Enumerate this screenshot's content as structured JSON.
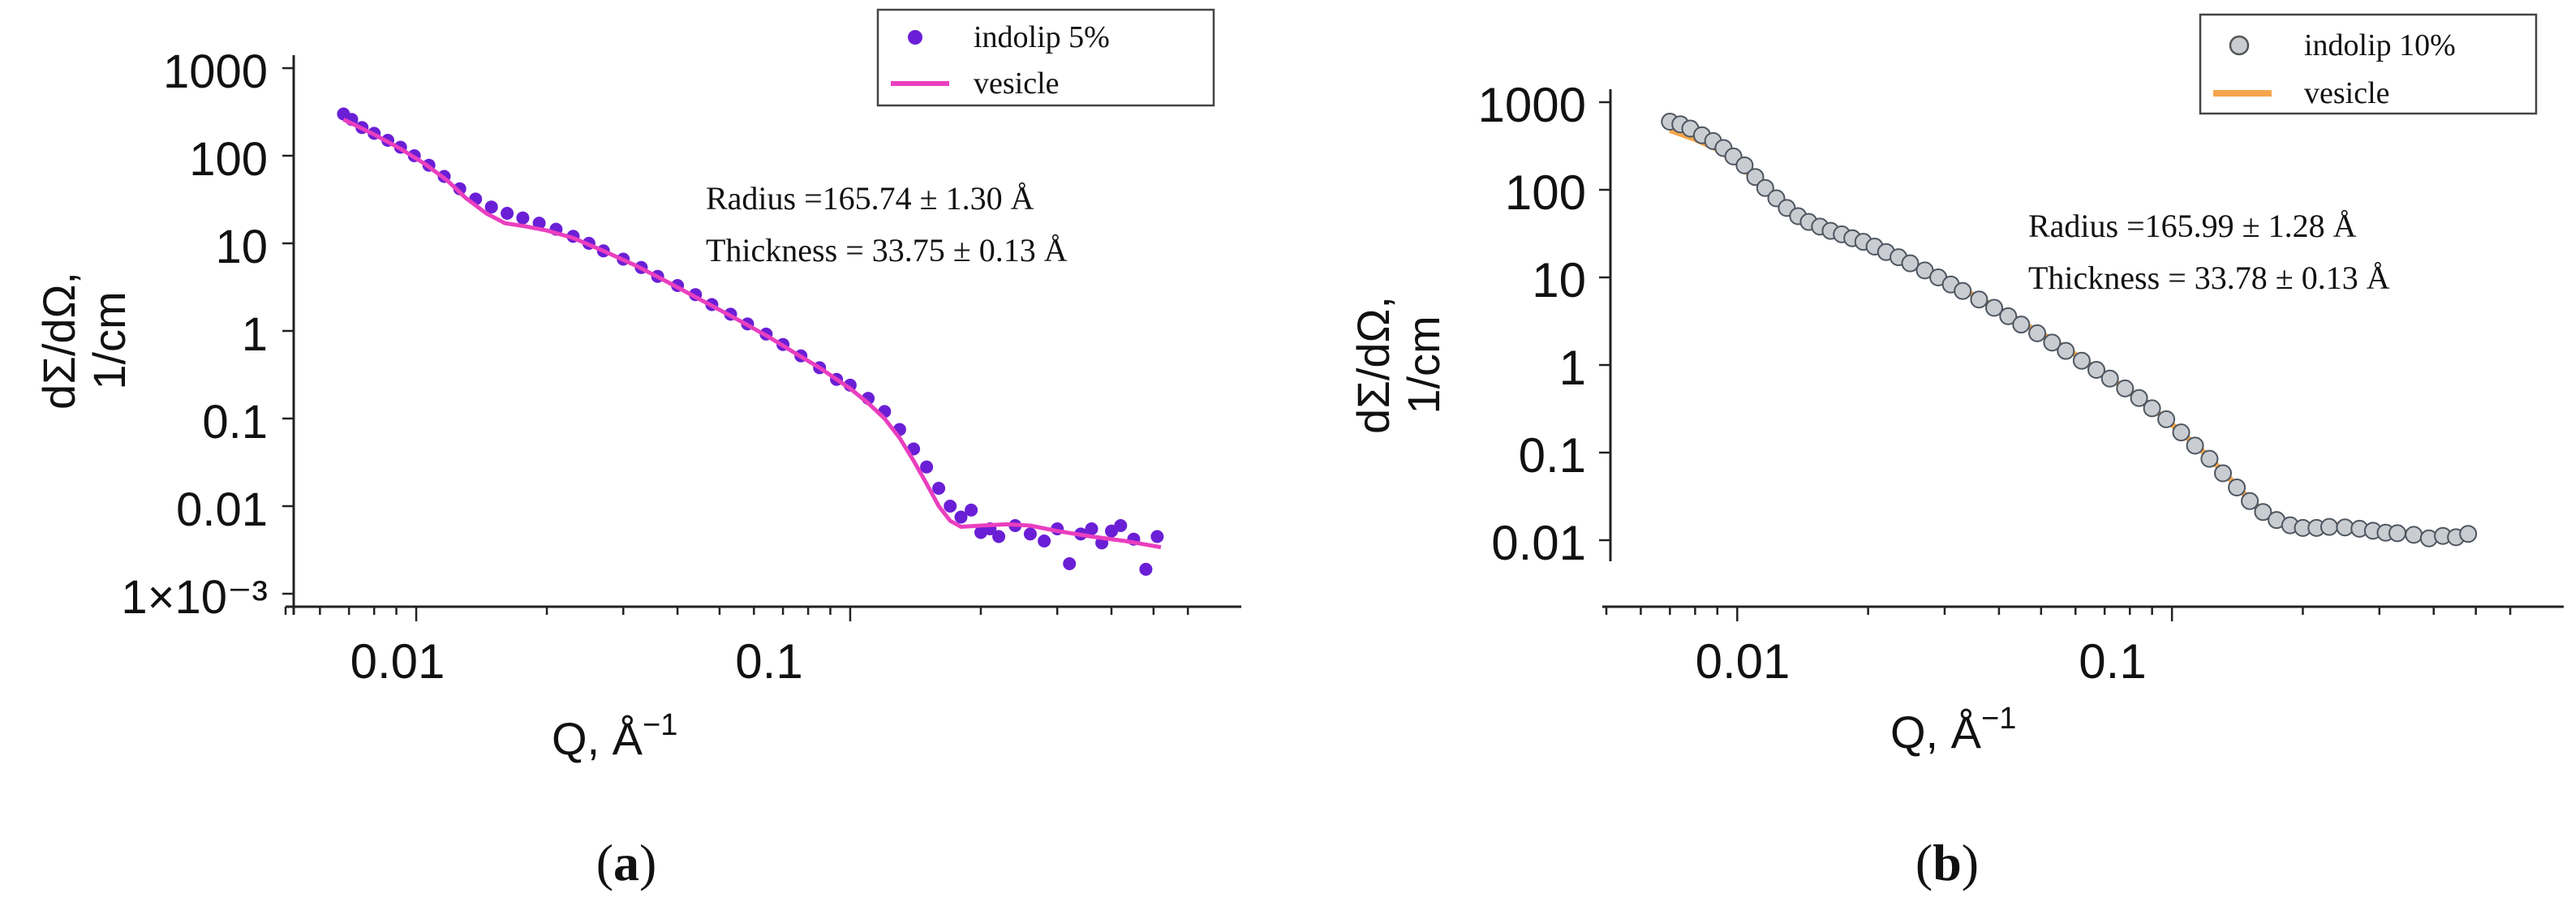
{
  "figure": {
    "charts": [
      {
        "id": "a",
        "panel_label": "(a)",
        "panel_letter": "a",
        "ylabel_line1": "dΣ/dΩ,",
        "ylabel_line2": "1/cm",
        "xlabel": "Q, Å",
        "xlabel_sup": "−1",
        "annotation_radius": "Radius =165.74 ± 1.30 Å",
        "annotation_thickness": "Thickness = 33.75 ± 0.13 Å",
        "legend": [
          {
            "label": "indolip 5%",
            "kind": "marker"
          },
          {
            "label": "vesicle",
            "kind": "line"
          }
        ]
      },
      {
        "id": "b",
        "panel_label": "(b)",
        "panel_letter": "b",
        "ylabel_line1": "dΣ/dΩ,",
        "ylabel_line2": "1/cm",
        "xlabel": "Q, Å",
        "xlabel_sup": "−1",
        "annotation_radius": "Radius =165.99 ± 1.28 Å",
        "annotation_thickness": "Thickness = 33.78 ± 0.13 Å",
        "legend": [
          {
            "label": "indolip 10%",
            "kind": "marker"
          },
          {
            "label": "vesicle",
            "kind": "line"
          }
        ]
      }
    ]
  },
  "chart_data": [
    {
      "type": "scatter",
      "panel": "a",
      "xscale": "log",
      "yscale": "log",
      "xlabel": "Q, Å^-1",
      "ylabel": "dΣ/dΩ, 1/cm",
      "xlim": [
        0.005,
        0.7
      ],
      "ylim": [
        0.001,
        1000
      ],
      "xticks": [
        0.01,
        0.1
      ],
      "xtick_labels": [
        "0.01",
        "0.1"
      ],
      "yticks": [
        1000,
        100,
        10,
        1,
        0.1,
        0.01,
        0.001
      ],
      "ytick_labels": [
        "1000",
        "100",
        "10",
        "1",
        "0.1",
        "0.01",
        "1×10⁻³"
      ],
      "legend_position": "top-right",
      "series": [
        {
          "name": "indolip 5%",
          "kind": "scatter",
          "color": "#6a1fd6",
          "marker": "filled-circle",
          "points": [
            [
              0.0068,
              300
            ],
            [
              0.0071,
              260
            ],
            [
              0.0075,
              210
            ],
            [
              0.008,
              180
            ],
            [
              0.0086,
              150
            ],
            [
              0.0092,
              125
            ],
            [
              0.0099,
              100
            ],
            [
              0.0107,
              78
            ],
            [
              0.0116,
              58
            ],
            [
              0.0126,
              42
            ],
            [
              0.0137,
              32
            ],
            [
              0.0149,
              26
            ],
            [
              0.0162,
              22
            ],
            [
              0.0176,
              19.5
            ],
            [
              0.0192,
              17
            ],
            [
              0.021,
              14.5
            ],
            [
              0.023,
              12
            ],
            [
              0.025,
              10
            ],
            [
              0.027,
              8.2
            ],
            [
              0.03,
              6.6
            ],
            [
              0.033,
              5.3
            ],
            [
              0.036,
              4.2
            ],
            [
              0.04,
              3.3
            ],
            [
              0.044,
              2.6
            ],
            [
              0.048,
              2.0
            ],
            [
              0.053,
              1.55
            ],
            [
              0.058,
              1.2
            ],
            [
              0.064,
              0.92
            ],
            [
              0.07,
              0.7
            ],
            [
              0.077,
              0.52
            ],
            [
              0.085,
              0.38
            ],
            [
              0.093,
              0.28
            ],
            [
              0.1,
              0.24
            ],
            [
              0.11,
              0.17
            ],
            [
              0.12,
              0.12
            ],
            [
              0.13,
              0.075
            ],
            [
              0.14,
              0.045
            ],
            [
              0.15,
              0.028
            ],
            [
              0.16,
              0.016
            ],
            [
              0.17,
              0.01
            ],
            [
              0.18,
              0.0075
            ],
            [
              0.19,
              0.009
            ],
            [
              0.2,
              0.005
            ],
            [
              0.21,
              0.0055
            ],
            [
              0.22,
              0.0045
            ],
            [
              0.24,
              0.006
            ],
            [
              0.26,
              0.0048
            ],
            [
              0.28,
              0.004
            ],
            [
              0.3,
              0.0055
            ],
            [
              0.32,
              0.0022
            ],
            [
              0.34,
              0.0048
            ],
            [
              0.36,
              0.0055
            ],
            [
              0.38,
              0.0038
            ],
            [
              0.4,
              0.0052
            ],
            [
              0.42,
              0.006
            ],
            [
              0.45,
              0.0042
            ],
            [
              0.48,
              0.0019
            ],
            [
              0.51,
              0.0045
            ]
          ]
        },
        {
          "name": "vesicle",
          "kind": "line",
          "color": "#ea3fbf",
          "points": [
            [
              0.0068,
              260
            ],
            [
              0.008,
              175
            ],
            [
              0.0092,
              120
            ],
            [
              0.0105,
              80
            ],
            [
              0.0118,
              52
            ],
            [
              0.013,
              33
            ],
            [
              0.0145,
              22
            ],
            [
              0.016,
              17
            ],
            [
              0.018,
              15.5
            ],
            [
              0.02,
              14
            ],
            [
              0.023,
              11.5
            ],
            [
              0.027,
              8.2
            ],
            [
              0.032,
              5.6
            ],
            [
              0.038,
              3.6
            ],
            [
              0.045,
              2.3
            ],
            [
              0.055,
              1.35
            ],
            [
              0.065,
              0.85
            ],
            [
              0.075,
              0.55
            ],
            [
              0.085,
              0.38
            ],
            [
              0.1,
              0.22
            ],
            [
              0.11,
              0.15
            ],
            [
              0.12,
              0.1
            ],
            [
              0.13,
              0.06
            ],
            [
              0.14,
              0.033
            ],
            [
              0.15,
              0.018
            ],
            [
              0.16,
              0.01
            ],
            [
              0.17,
              0.0068
            ],
            [
              0.18,
              0.0058
            ],
            [
              0.2,
              0.006
            ],
            [
              0.23,
              0.0062
            ],
            [
              0.26,
              0.006
            ],
            [
              0.3,
              0.0052
            ],
            [
              0.36,
              0.0045
            ],
            [
              0.43,
              0.004
            ],
            [
              0.52,
              0.0034
            ]
          ]
        }
      ]
    },
    {
      "type": "scatter",
      "panel": "b",
      "xscale": "log",
      "yscale": "log",
      "xlabel": "Q, Å^-1",
      "ylabel": "dΣ/dΩ, 1/cm",
      "xlim": [
        0.005,
        0.7
      ],
      "ylim": [
        0.004,
        1000
      ],
      "xticks": [
        0.01,
        0.1
      ],
      "xtick_labels": [
        "0.01",
        "0.1"
      ],
      "yticks": [
        1000,
        100,
        10,
        1,
        0.1,
        0.01
      ],
      "ytick_labels": [
        "1000",
        "100",
        "10",
        "1",
        "0.1",
        "0.01"
      ],
      "legend_position": "top-right",
      "series": [
        {
          "name": "indolip 10%",
          "kind": "scatter",
          "color": "#9aa3ad",
          "marker": "open-circle",
          "points": [
            [
              0.007,
              600
            ],
            [
              0.0074,
              560
            ],
            [
              0.0078,
              500
            ],
            [
              0.0083,
              420
            ],
            [
              0.0088,
              360
            ],
            [
              0.0093,
              300
            ],
            [
              0.0098,
              240
            ],
            [
              0.0104,
              190
            ],
            [
              0.011,
              140
            ],
            [
              0.0116,
              105
            ],
            [
              0.0123,
              80
            ],
            [
              0.013,
              62
            ],
            [
              0.0138,
              50
            ],
            [
              0.0146,
              43
            ],
            [
              0.0155,
              38
            ],
            [
              0.0164,
              34
            ],
            [
              0.0174,
              31
            ],
            [
              0.0184,
              28
            ],
            [
              0.0195,
              25.5
            ],
            [
              0.0207,
              22.5
            ],
            [
              0.022,
              19.5
            ],
            [
              0.0235,
              17
            ],
            [
              0.025,
              14.5
            ],
            [
              0.027,
              12
            ],
            [
              0.029,
              10
            ],
            [
              0.031,
              8.3
            ],
            [
              0.033,
              7.0
            ],
            [
              0.036,
              5.6
            ],
            [
              0.039,
              4.5
            ],
            [
              0.042,
              3.6
            ],
            [
              0.045,
              2.9
            ],
            [
              0.049,
              2.3
            ],
            [
              0.053,
              1.8
            ],
            [
              0.057,
              1.45
            ],
            [
              0.062,
              1.12
            ],
            [
              0.067,
              0.88
            ],
            [
              0.072,
              0.7
            ],
            [
              0.078,
              0.54
            ],
            [
              0.084,
              0.42
            ],
            [
              0.09,
              0.32
            ],
            [
              0.097,
              0.24
            ],
            [
              0.105,
              0.17
            ],
            [
              0.113,
              0.12
            ],
            [
              0.122,
              0.085
            ],
            [
              0.131,
              0.058
            ],
            [
              0.141,
              0.04
            ],
            [
              0.151,
              0.028
            ],
            [
              0.162,
              0.021
            ],
            [
              0.174,
              0.017
            ],
            [
              0.187,
              0.0148
            ],
            [
              0.2,
              0.0138
            ],
            [
              0.215,
              0.0138
            ],
            [
              0.23,
              0.0142
            ],
            [
              0.25,
              0.014
            ],
            [
              0.27,
              0.0135
            ],
            [
              0.29,
              0.0128
            ],
            [
              0.31,
              0.0122
            ],
            [
              0.33,
              0.012
            ],
            [
              0.36,
              0.0115
            ],
            [
              0.39,
              0.0105
            ],
            [
              0.42,
              0.0112
            ],
            [
              0.45,
              0.0108
            ],
            [
              0.48,
              0.0118
            ]
          ]
        },
        {
          "name": "vesicle",
          "kind": "line",
          "color": "#f5a54a",
          "points": [
            [
              0.007,
              480
            ],
            [
              0.008,
              380
            ],
            [
              0.009,
              290
            ],
            [
              0.01,
              200
            ],
            [
              0.011,
              130
            ],
            [
              0.012,
              85
            ],
            [
              0.013,
              58
            ],
            [
              0.014,
              44
            ],
            [
              0.0155,
              37
            ],
            [
              0.017,
              32
            ],
            [
              0.019,
              27
            ],
            [
              0.021,
              22
            ],
            [
              0.024,
              16.5
            ],
            [
              0.028,
              11.5
            ],
            [
              0.033,
              7.3
            ],
            [
              0.039,
              4.7
            ],
            [
              0.046,
              2.9
            ],
            [
              0.055,
              1.75
            ],
            [
              0.065,
              1.0
            ],
            [
              0.075,
              0.62
            ],
            [
              0.085,
              0.4
            ],
            [
              0.095,
              0.26
            ],
            [
              0.105,
              0.17
            ],
            [
              0.12,
              0.095
            ],
            [
              0.135,
              0.052
            ],
            [
              0.15,
              0.03
            ],
            [
              0.165,
              0.02
            ],
            [
              0.18,
              0.0165
            ],
            [
              0.2,
              0.015
            ],
            [
              0.23,
              0.0152
            ],
            [
              0.27,
              0.0145
            ],
            [
              0.32,
              0.0128
            ],
            [
              0.38,
              0.0115
            ],
            [
              0.44,
              0.0108
            ],
            [
              0.49,
              0.0105
            ]
          ]
        }
      ]
    }
  ]
}
